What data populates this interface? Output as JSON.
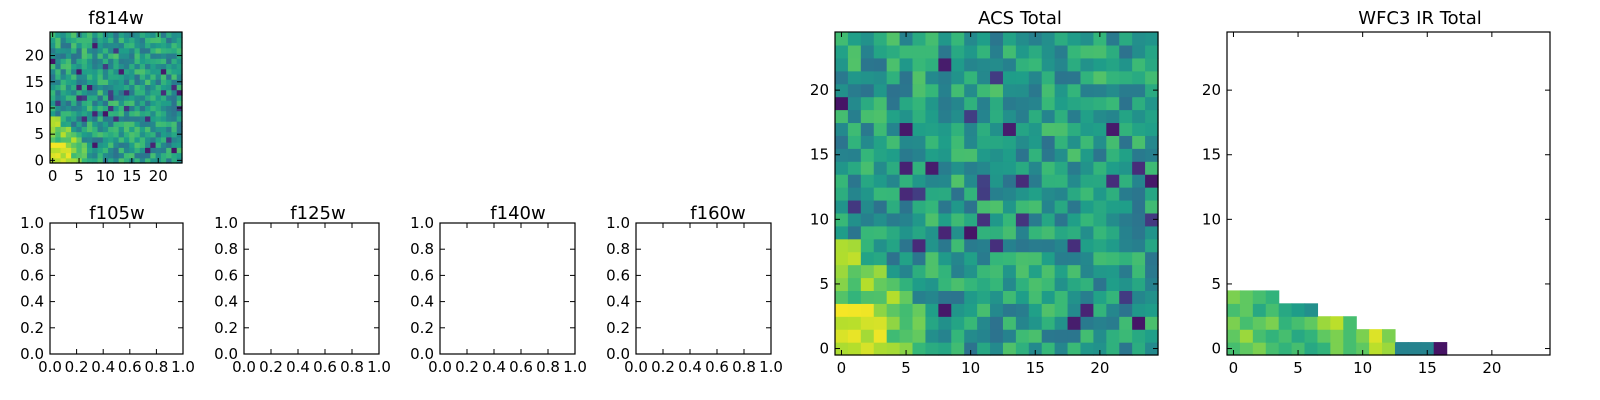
{
  "chart_data": [
    {
      "type": "heatmap",
      "title": "f814w",
      "xlim": [
        -0.5,
        24.5
      ],
      "ylim": [
        -0.5,
        24.5
      ],
      "xticks": [
        0,
        5,
        10,
        15,
        20
      ],
      "yticks": [
        0,
        5,
        10,
        15,
        20
      ],
      "grid_size": 25,
      "colormap": "viridis",
      "value_range": [
        0,
        1
      ],
      "description_of_values": "noise-like pixel values; brightest in lower-left corner",
      "seed": 814
    },
    {
      "type": "heatmap",
      "title": "ACS Total",
      "xlim": [
        -0.5,
        24.5
      ],
      "ylim": [
        -0.5,
        24.5
      ],
      "xticks": [
        0,
        5,
        10,
        15,
        20
      ],
      "yticks": [
        0,
        5,
        10,
        15,
        20
      ],
      "grid_size": 25,
      "colormap": "viridis",
      "value_range": [
        0,
        1
      ],
      "seed": 814
    },
    {
      "type": "heatmap",
      "title": "WFC3 IR Total",
      "xlim": [
        -0.5,
        24.5
      ],
      "ylim": [
        -0.5,
        24.5
      ],
      "xticks": [
        0,
        5,
        10,
        15,
        20
      ],
      "yticks": [
        0,
        5,
        10,
        15,
        20
      ],
      "colormap": "viridis",
      "rows": [
        {
          "y": 0,
          "values": [
            0.7,
            0.75,
            0.8,
            0.7,
            0.65,
            0.7,
            0.6,
            0.65,
            0.8,
            0.7,
            0.75,
            0.9,
            0.85,
            0.45,
            0.45,
            0.45,
            0.05
          ]
        },
        {
          "y": 1,
          "values": [
            0.75,
            0.85,
            0.7,
            0.65,
            0.7,
            0.6,
            0.65,
            0.75,
            0.8,
            0.7,
            0.8,
            0.95,
            0.8
          ]
        },
        {
          "y": 2,
          "values": [
            0.8,
            0.7,
            0.75,
            0.8,
            0.65,
            0.7,
            0.75,
            0.85,
            0.9,
            0.7
          ]
        },
        {
          "y": 3,
          "values": [
            0.7,
            0.75,
            0.6,
            0.7,
            0.6,
            0.55,
            0.5
          ]
        },
        {
          "y": 4,
          "values": [
            0.8,
            0.75,
            0.7,
            0.65
          ]
        }
      ]
    },
    {
      "type": "scatter",
      "title": "f105w",
      "xlim": [
        0.0,
        1.0
      ],
      "ylim": [
        0.0,
        1.0
      ],
      "xticks": [
        "0.0",
        "0.2",
        "0.4",
        "0.6",
        "0.8",
        "1.0"
      ],
      "yticks": [
        "0.0",
        "0.2",
        "0.4",
        "0.6",
        "0.8",
        "1.0"
      ],
      "series": []
    },
    {
      "type": "scatter",
      "title": "f125w",
      "xlim": [
        0.0,
        1.0
      ],
      "ylim": [
        0.0,
        1.0
      ],
      "xticks": [
        "0.0",
        "0.2",
        "0.4",
        "0.6",
        "0.8",
        "1.0"
      ],
      "yticks": [
        "0.0",
        "0.2",
        "0.4",
        "0.6",
        "0.8",
        "1.0"
      ],
      "series": []
    },
    {
      "type": "scatter",
      "title": "f140w",
      "xlim": [
        0.0,
        1.0
      ],
      "ylim": [
        0.0,
        1.0
      ],
      "xticks": [
        "0.0",
        "0.2",
        "0.4",
        "0.6",
        "0.8",
        "1.0"
      ],
      "yticks": [
        "0.0",
        "0.2",
        "0.4",
        "0.6",
        "0.8",
        "1.0"
      ],
      "series": []
    },
    {
      "type": "scatter",
      "title": "f160w",
      "xlim": [
        0.0,
        1.0
      ],
      "ylim": [
        0.0,
        1.0
      ],
      "xticks": [
        "0.0",
        "0.2",
        "0.4",
        "0.6",
        "0.8",
        "1.0"
      ],
      "yticks": [
        "0.0",
        "0.2",
        "0.4",
        "0.6",
        "0.8",
        "1.0"
      ],
      "series": []
    }
  ]
}
